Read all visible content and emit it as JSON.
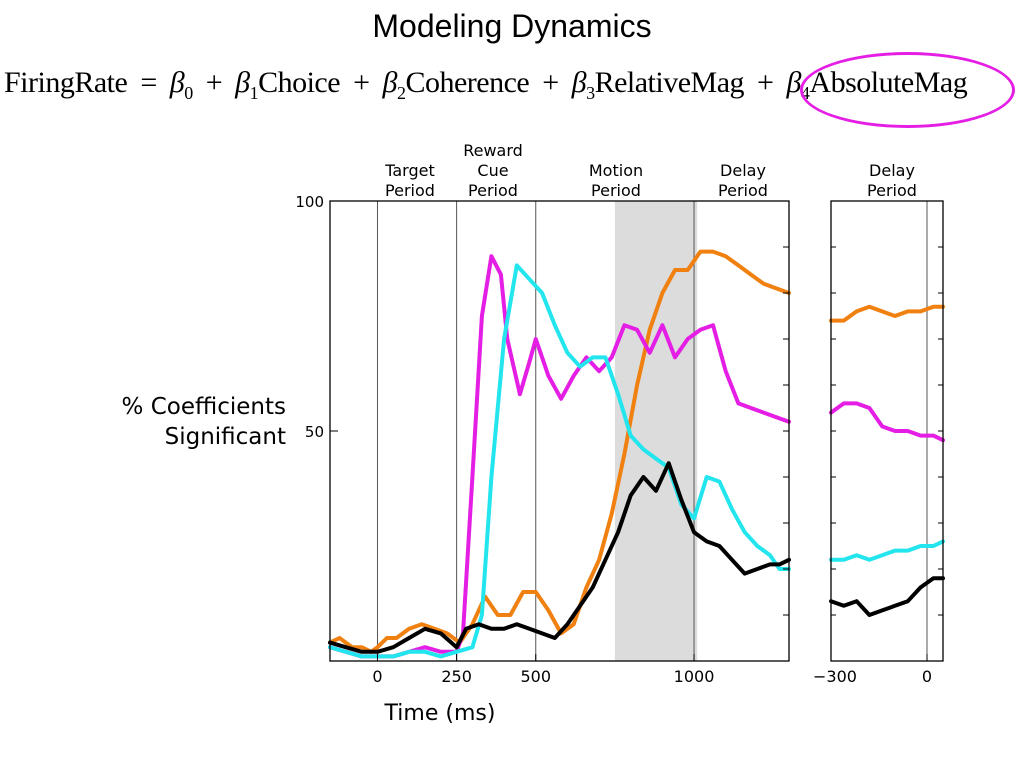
{
  "title": "Modeling Dynamics",
  "equation": {
    "lhs": "FiringRate",
    "equals": "=",
    "plus": "+",
    "beta": "β",
    "b0": "0",
    "b1": "1",
    "b2": "2",
    "b3": "3",
    "b4": "4",
    "t1": "Choice",
    "t2": "Coherence",
    "t3": "RelativeMag",
    "t4": "AbsoluteMag"
  },
  "colors": {
    "absolute_mag": "#f08010",
    "relative_mag": "#e51ee5",
    "coherence": "#22e5ee",
    "choice": "#000000",
    "highlight": "#e51ee5",
    "shade": "#dcdcdc"
  },
  "chart_data": [
    {
      "type": "line",
      "ylabel": "% Coefficients\nSignificant",
      "xlabel": "Time (ms)",
      "ylim": [
        0,
        100
      ],
      "xlim": [
        -150,
        1300
      ],
      "yticks": [
        "100",
        "50"
      ],
      "xticks": [
        "0",
        "250",
        "500",
        "1000"
      ],
      "period_labels": [
        "Target\nPeriod",
        "Reward\nCue\nPeriod",
        "Motion\nPeriod",
        "Delay\nPeriod"
      ],
      "shaded_region": [
        750,
        1010
      ],
      "series": [
        {
          "color": "#f08010",
          "x": [
            -150,
            -120,
            -100,
            -80,
            -50,
            -20,
            0,
            30,
            60,
            100,
            140,
            180,
            220,
            260,
            300,
            340,
            380,
            420,
            460,
            500,
            540,
            580,
            620,
            660,
            700,
            740,
            780,
            820,
            860,
            900,
            940,
            980,
            1020,
            1060,
            1100,
            1140,
            1180,
            1220,
            1260,
            1300
          ],
          "y": [
            4,
            5,
            4,
            3,
            3,
            2,
            3,
            5,
            5,
            7,
            8,
            7,
            6,
            4,
            8,
            14,
            10,
            10,
            15,
            15,
            11,
            6,
            8,
            16,
            22,
            32,
            45,
            60,
            72,
            80,
            85,
            85,
            89,
            89,
            88,
            86,
            84,
            82,
            81,
            80
          ]
        },
        {
          "color": "#e51ee5",
          "x": [
            -150,
            -100,
            -50,
            0,
            50,
            100,
            150,
            200,
            250,
            270,
            300,
            330,
            360,
            390,
            410,
            450,
            480,
            500,
            540,
            580,
            620,
            660,
            700,
            740,
            780,
            820,
            860,
            900,
            940,
            980,
            1020,
            1060,
            1100,
            1140,
            1180,
            1220,
            1260,
            1300
          ],
          "y": [
            3,
            2,
            1,
            1,
            1,
            2,
            3,
            2,
            2,
            6,
            40,
            75,
            88,
            84,
            70,
            58,
            65,
            70,
            62,
            57,
            62,
            66,
            63,
            66,
            73,
            72,
            67,
            73,
            66,
            70,
            72,
            73,
            63,
            56,
            55,
            54,
            53,
            52
          ]
        },
        {
          "color": "#22e5ee",
          "x": [
            -150,
            -100,
            -50,
            0,
            50,
            100,
            150,
            200,
            250,
            300,
            330,
            360,
            400,
            440,
            480,
            520,
            560,
            600,
            640,
            680,
            720,
            760,
            800,
            840,
            880,
            920,
            960,
            1000,
            1040,
            1080,
            1120,
            1160,
            1200,
            1240,
            1270,
            1300
          ],
          "y": [
            3,
            2,
            1,
            1,
            1,
            2,
            2,
            1,
            2,
            3,
            10,
            40,
            70,
            86,
            83,
            80,
            73,
            67,
            64,
            66,
            66,
            58,
            49,
            46,
            44,
            42,
            34,
            31,
            40,
            39,
            33,
            28,
            25,
            23,
            20,
            20
          ]
        },
        {
          "color": "#000000",
          "x": [
            -150,
            -100,
            -50,
            0,
            50,
            100,
            150,
            200,
            250,
            280,
            320,
            360,
            400,
            440,
            480,
            520,
            560,
            600,
            640,
            680,
            720,
            760,
            800,
            840,
            880,
            920,
            960,
            1000,
            1040,
            1080,
            1120,
            1160,
            1200,
            1240,
            1270,
            1300
          ],
          "y": [
            4,
            3,
            2,
            2,
            3,
            5,
            7,
            6,
            3,
            7,
            8,
            7,
            7,
            8,
            7,
            6,
            5,
            8,
            12,
            16,
            22,
            28,
            36,
            40,
            37,
            43,
            35,
            28,
            26,
            25,
            22,
            19,
            20,
            21,
            21,
            22
          ]
        }
      ]
    },
    {
      "type": "line",
      "ylim": [
        0,
        100
      ],
      "xlim": [
        -300,
        50
      ],
      "xticks": [
        "−300",
        "0"
      ],
      "period_labels": [
        "Delay\nPeriod"
      ],
      "series": [
        {
          "color": "#f08010",
          "x": [
            -300,
            -260,
            -220,
            -180,
            -140,
            -100,
            -60,
            -20,
            20,
            50
          ],
          "y": [
            74,
            74,
            76,
            77,
            76,
            75,
            76,
            76,
            77,
            77
          ]
        },
        {
          "color": "#e51ee5",
          "x": [
            -300,
            -260,
            -220,
            -180,
            -140,
            -100,
            -60,
            -20,
            20,
            50
          ],
          "y": [
            54,
            56,
            56,
            55,
            51,
            50,
            50,
            49,
            49,
            48
          ]
        },
        {
          "color": "#22e5ee",
          "x": [
            -300,
            -260,
            -220,
            -180,
            -140,
            -100,
            -60,
            -20,
            20,
            50
          ],
          "y": [
            22,
            22,
            23,
            22,
            23,
            24,
            24,
            25,
            25,
            26
          ]
        },
        {
          "color": "#000000",
          "x": [
            -300,
            -260,
            -220,
            -180,
            -140,
            -100,
            -60,
            -20,
            20,
            50
          ],
          "y": [
            13,
            12,
            13,
            10,
            11,
            12,
            13,
            16,
            18,
            18
          ]
        }
      ]
    }
  ]
}
